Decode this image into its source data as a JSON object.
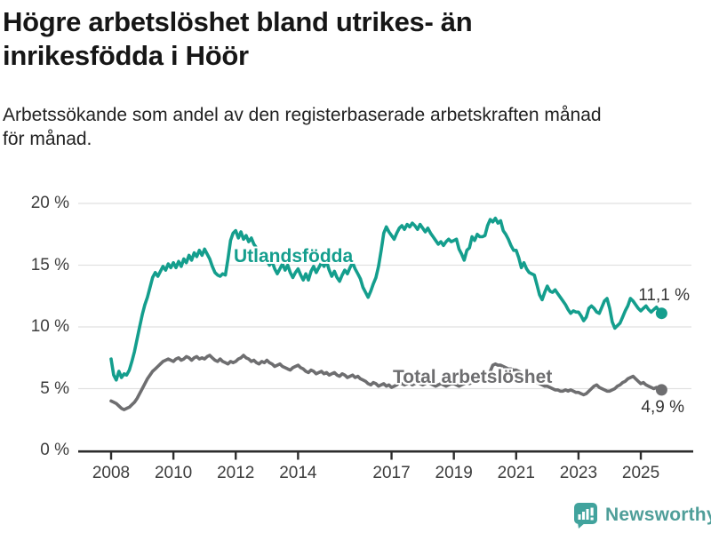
{
  "header": {
    "title": "Högre arbetslöshet bland utrikes- än inrikesfödda i Höör",
    "title_lines": [
      "Högre arbetslöshet bland utrikes- än",
      "inrikesfödda i Höör"
    ],
    "subtitle": "Arbetssökande som andel av den registerbaserade arbetskraften månad för månad.",
    "subtitle_lines": [
      "Arbetssökande som andel av den registerbaserade arbetskraften månad",
      "för månad."
    ]
  },
  "chart_data": {
    "type": "line",
    "title": "Högre arbetslöshet bland utrikes- än inrikesfödda i Höör",
    "subtitle": "Arbetssökande som andel av den registerbaserade arbetskraften månad för månad.",
    "unit": "%",
    "frequency": "monthly",
    "start": "2008-01",
    "end": "2025-09",
    "ylim": [
      0,
      20
    ],
    "grid": "horizontal",
    "legend_position": "inline",
    "y_ticks": [
      {
        "value": 0,
        "label": "0 %"
      },
      {
        "value": 5,
        "label": "5 %"
      },
      {
        "value": 10,
        "label": "10 %"
      },
      {
        "value": 15,
        "label": "15 %"
      },
      {
        "value": 20,
        "label": "20 %"
      }
    ],
    "x_ticks": [
      {
        "year": 2008,
        "label": "2008"
      },
      {
        "year": 2010,
        "label": "2010"
      },
      {
        "year": 2012,
        "label": "2012"
      },
      {
        "year": 2014,
        "label": "2014"
      },
      {
        "year": 2017,
        "label": "2017"
      },
      {
        "year": 2019,
        "label": "2019"
      },
      {
        "year": 2021,
        "label": "2021"
      },
      {
        "year": 2023,
        "label": "2023"
      },
      {
        "year": 2025,
        "label": "2025"
      }
    ],
    "series": [
      {
        "name": "Utlandsfödda",
        "color": "#149e8d",
        "end_value_label": "11,1 %",
        "values": [
          7.4,
          6.1,
          5.7,
          6.4,
          5.9,
          6.2,
          6.1,
          6.5,
          7.2,
          8.0,
          9.0,
          10.0,
          11.0,
          11.8,
          12.4,
          13.2,
          14.0,
          14.4,
          14.1,
          14.5,
          14.9,
          14.6,
          15.1,
          14.8,
          15.2,
          14.8,
          15.3,
          14.9,
          15.5,
          15.2,
          15.8,
          15.4,
          16.0,
          15.7,
          16.2,
          15.8,
          16.3,
          15.9,
          15.5,
          14.9,
          14.4,
          14.2,
          14.1,
          14.3,
          14.2,
          15.5,
          17.0,
          17.6,
          17.8,
          17.2,
          17.7,
          17.1,
          17.4,
          16.9,
          17.2,
          16.7,
          16.4,
          15.9,
          15.6,
          15.9,
          15.4,
          15.0,
          15.3,
          14.7,
          14.3,
          14.7,
          15.1,
          14.6,
          15.0,
          14.4,
          14.0,
          14.4,
          14.7,
          14.2,
          13.8,
          14.3,
          13.8,
          14.5,
          14.9,
          14.4,
          14.8,
          15.2,
          14.9,
          15.3,
          14.6,
          14.1,
          14.5,
          14.0,
          13.7,
          14.2,
          14.6,
          14.3,
          14.8,
          15.2,
          14.7,
          14.3,
          13.9,
          13.2,
          12.8,
          12.4,
          12.9,
          13.5,
          14.0,
          14.9,
          16.2,
          17.6,
          18.1,
          17.7,
          17.4,
          17.1,
          17.6,
          18.0,
          18.2,
          17.9,
          18.3,
          18.1,
          18.4,
          18.2,
          17.9,
          18.3,
          18.0,
          17.7,
          18.0,
          17.6,
          17.3,
          17.0,
          16.7,
          16.9,
          16.6,
          16.9,
          17.1,
          16.9,
          17.0,
          17.1,
          16.3,
          15.9,
          15.4,
          16.2,
          16.4,
          17.3,
          17.0,
          17.5,
          17.3,
          17.3,
          17.4,
          18.2,
          18.7,
          18.5,
          18.8,
          18.4,
          18.6,
          17.8,
          17.5,
          17.1,
          16.6,
          16.2,
          16.2,
          15.6,
          14.8,
          15.2,
          14.7,
          14.4,
          14.3,
          14.2,
          13.4,
          12.6,
          12.2,
          12.8,
          13.3,
          12.9,
          12.8,
          13.0,
          12.7,
          12.4,
          12.1,
          11.8,
          11.4,
          11.1,
          11.3,
          11.2,
          11.2,
          10.9,
          10.5,
          10.8,
          11.5,
          11.7,
          11.5,
          11.2,
          11.1,
          11.6,
          12.1,
          12.3,
          11.5,
          10.4,
          9.9,
          10.1,
          10.3,
          10.8,
          11.3,
          11.7,
          12.3,
          12.1,
          11.8,
          11.5,
          11.3,
          11.5,
          11.7,
          11.4,
          11.2,
          11.4,
          11.6,
          11.3,
          11.1
        ]
      },
      {
        "name": "Total arbetslöshet",
        "color": "#6e6e70",
        "end_value_label": "4,9 %",
        "values": [
          4.0,
          3.9,
          3.8,
          3.6,
          3.4,
          3.3,
          3.4,
          3.5,
          3.7,
          3.9,
          4.2,
          4.6,
          5.0,
          5.4,
          5.8,
          6.1,
          6.4,
          6.6,
          6.8,
          7.0,
          7.2,
          7.3,
          7.4,
          7.3,
          7.2,
          7.4,
          7.5,
          7.3,
          7.4,
          7.6,
          7.5,
          7.3,
          7.5,
          7.6,
          7.4,
          7.5,
          7.4,
          7.6,
          7.7,
          7.5,
          7.3,
          7.2,
          7.4,
          7.2,
          7.1,
          7.0,
          7.2,
          7.1,
          7.2,
          7.4,
          7.5,
          7.7,
          7.5,
          7.4,
          7.2,
          7.3,
          7.1,
          7.0,
          7.2,
          7.1,
          7.3,
          7.1,
          7.0,
          6.8,
          6.9,
          7.0,
          6.8,
          6.7,
          6.6,
          6.5,
          6.7,
          6.8,
          6.9,
          6.7,
          6.6,
          6.4,
          6.3,
          6.5,
          6.4,
          6.2,
          6.3,
          6.4,
          6.2,
          6.3,
          6.1,
          6.2,
          6.3,
          6.1,
          6.0,
          6.2,
          6.1,
          5.9,
          6.0,
          6.1,
          5.9,
          6.0,
          5.8,
          5.7,
          5.6,
          5.4,
          5.3,
          5.5,
          5.4,
          5.2,
          5.3,
          5.4,
          5.2,
          5.3,
          5.1,
          5.2,
          5.3,
          5.5,
          5.4,
          5.3,
          5.4,
          5.5,
          5.3,
          5.4,
          5.5,
          5.4,
          5.3,
          5.4,
          5.5,
          5.4,
          5.3,
          5.2,
          5.3,
          5.4,
          5.3,
          5.2,
          5.3,
          5.4,
          5.4,
          5.3,
          5.2,
          5.3,
          5.4,
          5.5,
          5.4,
          5.5,
          5.6,
          5.5,
          5.6,
          5.6,
          5.7,
          5.9,
          6.4,
          6.9,
          7.0,
          6.9,
          6.9,
          6.8,
          6.7,
          6.6,
          6.6,
          6.5,
          6.5,
          6.4,
          6.3,
          6.1,
          6.0,
          5.8,
          5.7,
          5.6,
          5.5,
          5.4,
          5.3,
          5.2,
          5.2,
          5.1,
          5.0,
          4.9,
          4.9,
          4.8,
          4.8,
          4.9,
          4.8,
          4.9,
          4.8,
          4.7,
          4.7,
          4.6,
          4.5,
          4.6,
          4.8,
          5.0,
          5.2,
          5.3,
          5.1,
          5.0,
          4.9,
          4.8,
          4.8,
          4.9,
          5.0,
          5.2,
          5.3,
          5.5,
          5.6,
          5.8,
          5.9,
          6.0,
          5.8,
          5.6,
          5.4,
          5.5,
          5.3,
          5.2,
          5.1,
          5.0,
          5.1,
          5.0,
          4.9
        ]
      }
    ]
  },
  "footer": {
    "brand": "Newsworthy",
    "logo_icon": "bar-chart-speech-bubble-icon"
  },
  "colors": {
    "accent_teal": "#149e8d",
    "series_gray": "#6e6e70",
    "grid": "#e1e1e1",
    "axis": "#2d2d2d",
    "title_text": "#161616",
    "tick_text": "#3d3d3d",
    "logo_teal": "#41a39d",
    "logo_text_teal": "#4f9e99"
  }
}
